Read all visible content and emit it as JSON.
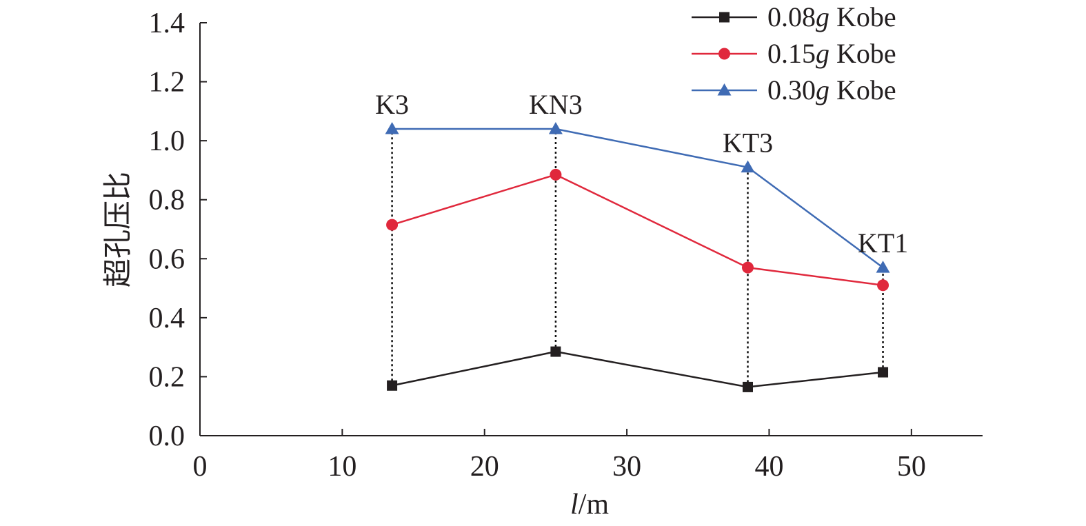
{
  "chart_data": {
    "type": "line",
    "xlabel": {
      "italic": "l",
      "rest": "/m"
    },
    "ylabel": "超孔压比",
    "xlim": [
      0,
      55
    ],
    "ylim": [
      0,
      1.4
    ],
    "xticks": [
      "0",
      "10",
      "20",
      "30",
      "40",
      "50"
    ],
    "xtick_values": [
      0,
      10,
      20,
      30,
      40,
      50
    ],
    "yticks": [
      "0.0",
      "0.2",
      "0.4",
      "0.6",
      "0.8",
      "1.0",
      "1.2",
      "1.4"
    ],
    "ytick_values": [
      0,
      0.2,
      0.4,
      0.6,
      0.8,
      1.0,
      1.2,
      1.4
    ],
    "grid": false,
    "legend_position": "top-right",
    "x": [
      13.5,
      25,
      38.5,
      48
    ],
    "point_labels": [
      {
        "text": "K3",
        "x": 13.5,
        "y": 1.04
      },
      {
        "text": "KN3",
        "x": 25,
        "y": 1.04
      },
      {
        "text": "KT3",
        "x": 38.5,
        "y": 0.91
      },
      {
        "text": "KT1",
        "x": 48,
        "y": 0.57
      }
    ],
    "series": [
      {
        "name_prefix": "0.08",
        "name_italic": "g",
        "name_suffix": " Kobe",
        "color": "#231f20",
        "marker": "square",
        "values": [
          0.17,
          0.285,
          0.165,
          0.215
        ]
      },
      {
        "name_prefix": "0.15",
        "name_italic": "g",
        "name_suffix": " Kobe",
        "color": "#e0283c",
        "marker": "circle",
        "values": [
          0.715,
          0.885,
          0.57,
          0.51
        ]
      },
      {
        "name_prefix": "0.30",
        "name_italic": "g",
        "name_suffix": " Kobe",
        "color": "#3f6bb4",
        "marker": "triangle",
        "values": [
          1.04,
          1.04,
          0.91,
          0.57
        ]
      }
    ]
  }
}
